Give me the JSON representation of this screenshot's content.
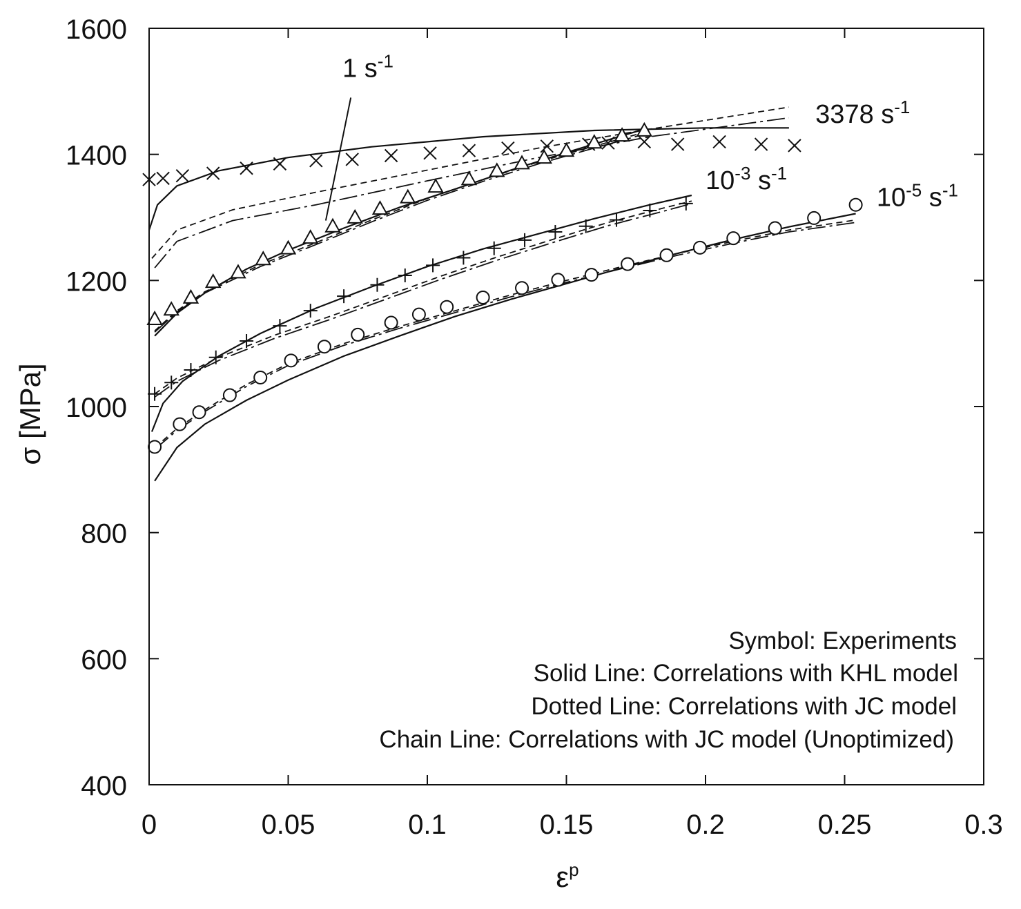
{
  "chart_data": {
    "type": "scatter",
    "title": "",
    "xlabel": "ε",
    "xlabel_sup": "p",
    "ylabel": "σ [MPa]",
    "xlim": [
      0,
      0.3
    ],
    "ylim": [
      400,
      1600
    ],
    "xticks": [
      0,
      0.05,
      0.1,
      0.15,
      0.2,
      0.25,
      0.3
    ],
    "xtick_labels": [
      "0",
      "0.05",
      "0.1",
      "0.15",
      "0.2",
      "0.25",
      "0.3"
    ],
    "yticks": [
      400,
      600,
      800,
      1000,
      1200,
      1400,
      1600
    ],
    "ytick_labels": [
      "400",
      "600",
      "800",
      "1000",
      "1200",
      "1400",
      "1600"
    ],
    "grid": false,
    "legend_position": "bottom-right",
    "legend_lines": [
      "Symbol: Experiments",
      "Solid Line: Correlations with KHL model",
      "Dotted Line: Correlations with JC model",
      "Chain Line: Correlations with JC model (Unoptimized)"
    ],
    "colors": {
      "line": "#111111",
      "background": "#ffffff"
    },
    "series": [
      {
        "rate_base": "3378 s",
        "rate_sup": "-1",
        "marker": "x",
        "label_at": [
          0.2395,
          1450
        ],
        "experiments": [
          [
            0.0,
            1360
          ],
          [
            0.005,
            1362
          ],
          [
            0.012,
            1366
          ],
          [
            0.023,
            1370
          ],
          [
            0.035,
            1378
          ],
          [
            0.047,
            1385
          ],
          [
            0.06,
            1390
          ],
          [
            0.073,
            1392
          ],
          [
            0.087,
            1398
          ],
          [
            0.101,
            1402
          ],
          [
            0.115,
            1406
          ],
          [
            0.129,
            1410
          ],
          [
            0.143,
            1413
          ],
          [
            0.158,
            1416
          ],
          [
            0.165,
            1418
          ],
          [
            0.178,
            1420
          ],
          [
            0.19,
            1416
          ],
          [
            0.205,
            1420
          ],
          [
            0.22,
            1416
          ],
          [
            0.232,
            1414
          ]
        ],
        "khl": [
          [
            0.0,
            1280
          ],
          [
            0.003,
            1320
          ],
          [
            0.01,
            1350
          ],
          [
            0.025,
            1374
          ],
          [
            0.05,
            1395
          ],
          [
            0.08,
            1412
          ],
          [
            0.12,
            1428
          ],
          [
            0.16,
            1438
          ],
          [
            0.2,
            1442
          ],
          [
            0.23,
            1442
          ]
        ],
        "jc": [
          [
            0.001,
            1235
          ],
          [
            0.01,
            1280
          ],
          [
            0.03,
            1312
          ],
          [
            0.06,
            1340
          ],
          [
            0.1,
            1375
          ],
          [
            0.14,
            1410
          ],
          [
            0.18,
            1440
          ],
          [
            0.23,
            1475
          ]
        ],
        "jc_unopt": [
          [
            0.002,
            1220
          ],
          [
            0.01,
            1262
          ],
          [
            0.03,
            1295
          ],
          [
            0.06,
            1320
          ],
          [
            0.1,
            1358
          ],
          [
            0.14,
            1395
          ],
          [
            0.18,
            1428
          ],
          [
            0.23,
            1458
          ]
        ]
      },
      {
        "rate_base": "1 s",
        "rate_sup": "-1",
        "marker": "triangle",
        "label_at": [
          0.0695,
          1523
        ],
        "leader": [
          [
            0.0725,
            1490
          ],
          [
            0.0635,
            1295
          ]
        ],
        "experiments": [
          [
            0.002,
            1138
          ],
          [
            0.008,
            1153
          ],
          [
            0.015,
            1172
          ],
          [
            0.023,
            1197
          ],
          [
            0.032,
            1212
          ],
          [
            0.041,
            1233
          ],
          [
            0.05,
            1250
          ],
          [
            0.058,
            1267
          ],
          [
            0.066,
            1285
          ],
          [
            0.074,
            1299
          ],
          [
            0.083,
            1313
          ],
          [
            0.093,
            1331
          ],
          [
            0.103,
            1348
          ],
          [
            0.115,
            1360
          ],
          [
            0.125,
            1373
          ],
          [
            0.134,
            1385
          ],
          [
            0.142,
            1394
          ],
          [
            0.15,
            1405
          ],
          [
            0.16,
            1418
          ],
          [
            0.17,
            1429
          ],
          [
            0.178,
            1437
          ]
        ],
        "khl": [
          [
            0.002,
            1112
          ],
          [
            0.01,
            1148
          ],
          [
            0.02,
            1180
          ],
          [
            0.035,
            1218
          ],
          [
            0.05,
            1248
          ],
          [
            0.07,
            1283
          ],
          [
            0.09,
            1316
          ],
          [
            0.11,
            1345
          ],
          [
            0.13,
            1375
          ],
          [
            0.15,
            1403
          ],
          [
            0.165,
            1423
          ],
          [
            0.178,
            1440
          ]
        ],
        "jc": [
          [
            0.002,
            1120
          ],
          [
            0.01,
            1152
          ],
          [
            0.02,
            1182
          ],
          [
            0.04,
            1225
          ],
          [
            0.06,
            1260
          ],
          [
            0.08,
            1296
          ],
          [
            0.1,
            1330
          ],
          [
            0.12,
            1360
          ],
          [
            0.14,
            1388
          ],
          [
            0.16,
            1413
          ],
          [
            0.178,
            1435
          ]
        ],
        "jc_unopt": [
          [
            0.002,
            1118
          ],
          [
            0.01,
            1150
          ],
          [
            0.02,
            1180
          ],
          [
            0.04,
            1222
          ],
          [
            0.06,
            1257
          ],
          [
            0.08,
            1293
          ],
          [
            0.1,
            1327
          ],
          [
            0.12,
            1357
          ],
          [
            0.14,
            1385
          ],
          [
            0.16,
            1410
          ],
          [
            0.178,
            1432
          ]
        ]
      },
      {
        "rate_base": "10",
        "rate_exp": "-3",
        "rate_mid": " s",
        "rate_sup": "-1",
        "marker": "plus",
        "label_at": [
          0.2,
          1345
        ],
        "experiments": [
          [
            0.002,
            1020
          ],
          [
            0.008,
            1038
          ],
          [
            0.015,
            1058
          ],
          [
            0.024,
            1078
          ],
          [
            0.035,
            1104
          ],
          [
            0.047,
            1128
          ],
          [
            0.058,
            1152
          ],
          [
            0.07,
            1175
          ],
          [
            0.082,
            1193
          ],
          [
            0.092,
            1208
          ],
          [
            0.102,
            1224
          ],
          [
            0.113,
            1236
          ],
          [
            0.124,
            1251
          ],
          [
            0.135,
            1264
          ],
          [
            0.146,
            1277
          ],
          [
            0.157,
            1286
          ],
          [
            0.168,
            1296
          ],
          [
            0.18,
            1311
          ],
          [
            0.193,
            1322
          ]
        ],
        "khl": [
          [
            0.001,
            960
          ],
          [
            0.005,
            1005
          ],
          [
            0.012,
            1040
          ],
          [
            0.025,
            1080
          ],
          [
            0.04,
            1116
          ],
          [
            0.06,
            1156
          ],
          [
            0.08,
            1190
          ],
          [
            0.1,
            1222
          ],
          [
            0.12,
            1250
          ],
          [
            0.14,
            1274
          ],
          [
            0.16,
            1298
          ],
          [
            0.18,
            1320
          ],
          [
            0.195,
            1335
          ]
        ],
        "jc": [
          [
            0.002,
            1020
          ],
          [
            0.01,
            1045
          ],
          [
            0.025,
            1078
          ],
          [
            0.045,
            1113
          ],
          [
            0.065,
            1143
          ],
          [
            0.085,
            1175
          ],
          [
            0.105,
            1207
          ],
          [
            0.125,
            1237
          ],
          [
            0.145,
            1265
          ],
          [
            0.165,
            1292
          ],
          [
            0.185,
            1315
          ],
          [
            0.195,
            1326
          ]
        ],
        "jc_unopt": [
          [
            0.002,
            1015
          ],
          [
            0.01,
            1040
          ],
          [
            0.025,
            1073
          ],
          [
            0.045,
            1108
          ],
          [
            0.065,
            1138
          ],
          [
            0.085,
            1170
          ],
          [
            0.105,
            1202
          ],
          [
            0.125,
            1232
          ],
          [
            0.145,
            1260
          ],
          [
            0.165,
            1287
          ],
          [
            0.185,
            1310
          ],
          [
            0.195,
            1322
          ]
        ]
      },
      {
        "rate_base": "10",
        "rate_exp": "-5",
        "rate_mid": " s",
        "rate_sup": "-1",
        "marker": "circle",
        "label_at": [
          0.2615,
          1318
        ],
        "experiments": [
          [
            0.002,
            936
          ],
          [
            0.011,
            972
          ],
          [
            0.018,
            991
          ],
          [
            0.029,
            1018
          ],
          [
            0.04,
            1046
          ],
          [
            0.051,
            1073
          ],
          [
            0.063,
            1095
          ],
          [
            0.075,
            1114
          ],
          [
            0.087,
            1133
          ],
          [
            0.097,
            1146
          ],
          [
            0.107,
            1158
          ],
          [
            0.12,
            1173
          ],
          [
            0.134,
            1188
          ],
          [
            0.147,
            1201
          ],
          [
            0.159,
            1209
          ],
          [
            0.172,
            1226
          ],
          [
            0.186,
            1240
          ],
          [
            0.198,
            1252
          ],
          [
            0.21,
            1267
          ],
          [
            0.225,
            1283
          ],
          [
            0.239,
            1299
          ],
          [
            0.254,
            1320
          ]
        ],
        "khl": [
          [
            0.002,
            882
          ],
          [
            0.01,
            935
          ],
          [
            0.02,
            972
          ],
          [
            0.035,
            1010
          ],
          [
            0.05,
            1042
          ],
          [
            0.07,
            1080
          ],
          [
            0.09,
            1112
          ],
          [
            0.11,
            1143
          ],
          [
            0.13,
            1170
          ],
          [
            0.15,
            1195
          ],
          [
            0.17,
            1220
          ],
          [
            0.19,
            1243
          ],
          [
            0.21,
            1265
          ],
          [
            0.23,
            1285
          ],
          [
            0.254,
            1306
          ]
        ],
        "jc": [
          [
            0.002,
            935
          ],
          [
            0.01,
            965
          ],
          [
            0.02,
            995
          ],
          [
            0.035,
            1035
          ],
          [
            0.05,
            1068
          ],
          [
            0.07,
            1100
          ],
          [
            0.09,
            1127
          ],
          [
            0.11,
            1152
          ],
          [
            0.13,
            1177
          ],
          [
            0.15,
            1200
          ],
          [
            0.17,
            1222
          ],
          [
            0.19,
            1243
          ],
          [
            0.21,
            1262
          ],
          [
            0.23,
            1280
          ],
          [
            0.254,
            1296
          ]
        ],
        "jc_unopt": [
          [
            0.002,
            932
          ],
          [
            0.01,
            962
          ],
          [
            0.02,
            992
          ],
          [
            0.035,
            1032
          ],
          [
            0.05,
            1065
          ],
          [
            0.07,
            1097
          ],
          [
            0.09,
            1124
          ],
          [
            0.11,
            1149
          ],
          [
            0.13,
            1174
          ],
          [
            0.15,
            1197
          ],
          [
            0.17,
            1219
          ],
          [
            0.19,
            1240
          ],
          [
            0.21,
            1259
          ],
          [
            0.23,
            1277
          ],
          [
            0.254,
            1292
          ]
        ]
      }
    ]
  }
}
